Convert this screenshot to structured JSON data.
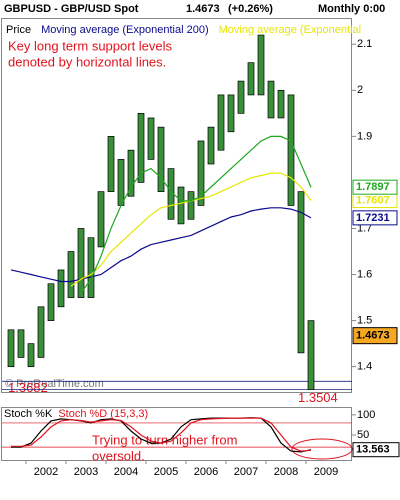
{
  "chart_data": [
    {
      "type": "candlestick",
      "title": "GBPUSD - GBP/USD Spot",
      "last": 1.4673,
      "change": "(+0.26%)",
      "period": "Monthly 0:00",
      "annotation": [
        "Key long term support levels",
        "denoted by horizontal lines."
      ],
      "watermark": "© ProRealTime.com",
      "xlim": [
        2001.4,
        2010.15
      ],
      "xticks": [
        2002,
        2003,
        2004,
        2005,
        2006,
        2007,
        2008,
        2009
      ],
      "ylim": [
        1.345,
        2.157
      ],
      "yticks": [
        1.4,
        1.5,
        1.6,
        1.7,
        1.9,
        2,
        2.1
      ],
      "support": [
        1.3682,
        1.3504
      ],
      "support_color": "#1a237e",
      "x": [
        2001.625,
        2001.875,
        2002.125,
        2002.375,
        2002.625,
        2002.875,
        2003.125,
        2003.375,
        2003.625,
        2003.875,
        2004.125,
        2004.375,
        2004.625,
        2004.875,
        2005.125,
        2005.375,
        2005.625,
        2005.875,
        2006.125,
        2006.375,
        2006.625,
        2006.875,
        2007.125,
        2007.375,
        2007.625,
        2007.875,
        2008.125,
        2008.375,
        2008.625,
        2008.875,
        2009.125
      ],
      "series": [
        {
          "name": "Price",
          "color": "#000000",
          "low": [
            1.4,
            1.42,
            1.4,
            1.42,
            1.5,
            1.53,
            1.55,
            1.55,
            1.55,
            1.66,
            1.78,
            1.75,
            1.77,
            1.8,
            1.85,
            1.78,
            1.72,
            1.71,
            1.72,
            1.75,
            1.84,
            1.87,
            1.91,
            1.95,
            1.99,
            1.99,
            1.94,
            1.94,
            1.75,
            1.43,
            1.35
          ],
          "high": [
            1.48,
            1.48,
            1.45,
            1.53,
            1.58,
            1.61,
            1.65,
            1.7,
            1.68,
            1.78,
            1.9,
            1.85,
            1.87,
            1.95,
            1.94,
            1.92,
            1.83,
            1.79,
            1.78,
            1.89,
            1.92,
            1.99,
            1.99,
            2.02,
            2.06,
            2.12,
            2.02,
            2.0,
            1.99,
            1.78,
            1.5
          ]
        },
        {
          "name": "Moving average (Exponential 200)",
          "color": "#0a0a8c",
          "values": [
            1.61,
            1.605,
            1.6,
            1.595,
            1.59,
            1.585,
            1.585,
            1.59,
            1.595,
            1.6,
            1.615,
            1.63,
            1.64,
            1.655,
            1.665,
            1.67,
            1.675,
            1.68,
            1.685,
            1.695,
            1.705,
            1.715,
            1.725,
            1.73,
            1.738,
            1.742,
            1.745,
            1.745,
            1.742,
            1.735,
            1.7231
          ]
        },
        {
          "name": "Moving average (Exponential",
          "color": "#e6e600",
          "values": [
            null,
            null,
            null,
            null,
            null,
            null,
            1.575,
            1.59,
            1.6,
            1.62,
            1.65,
            1.67,
            1.69,
            1.71,
            1.73,
            1.745,
            1.75,
            1.755,
            1.76,
            1.765,
            1.77,
            1.78,
            1.79,
            1.8,
            1.81,
            1.815,
            1.82,
            1.82,
            1.81,
            1.79,
            1.7607
          ]
        },
        {
          "color": "#1fa81f",
          "values": [
            null,
            null,
            null,
            null,
            null,
            null,
            null,
            1.56,
            1.59,
            1.64,
            1.7,
            1.75,
            1.79,
            1.82,
            1.83,
            1.81,
            1.78,
            1.76,
            1.76,
            1.77,
            1.79,
            1.81,
            1.83,
            1.85,
            1.87,
            1.89,
            1.9,
            1.9,
            1.89,
            1.84,
            1.7897
          ]
        }
      ]
    },
    {
      "type": "line",
      "annotation": [
        "Trying to turn higher from",
        "oversold."
      ],
      "ylim": [
        -12,
        117
      ],
      "yticks": [
        100,
        50
      ],
      "levels": [
        20,
        80
      ],
      "series": [
        {
          "name": "Stoch %K",
          "color": "#000000",
          "values": [
            20,
            20,
            30,
            60,
            85,
            90,
            88,
            85,
            80,
            88,
            90,
            85,
            60,
            40,
            30,
            30,
            40,
            70,
            88,
            90,
            92,
            92,
            92,
            92,
            93,
            92,
            70,
            30,
            10,
            8,
            13.563
          ]
        },
        {
          "name": "Stoch %D (15,3,3)",
          "color": "#e0141e",
          "values": [
            22,
            22,
            25,
            45,
            70,
            85,
            88,
            86,
            82,
            85,
            88,
            86,
            70,
            50,
            35,
            30,
            35,
            55,
            80,
            88,
            90,
            91,
            92,
            92,
            92,
            92,
            80,
            50,
            20,
            10,
            12
          ]
        }
      ]
    }
  ]
}
